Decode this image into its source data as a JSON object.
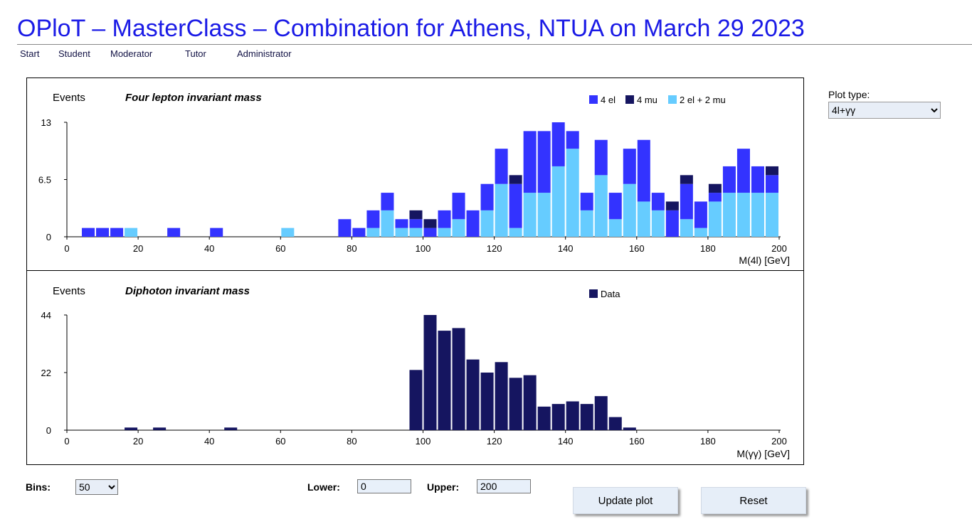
{
  "page": {
    "title": "OPloT – MasterClass – Combination for Athens, NTUA on March 29 2023",
    "nav": [
      "Start",
      "Student",
      "Moderator",
      "Tutor",
      "Administrator"
    ]
  },
  "controls": {
    "plot_type_label": "Plot type:",
    "plot_type_value": "4l+γγ",
    "bins_label": "Bins:",
    "bins_value": "50",
    "lower_label": "Lower:",
    "lower_value": "0",
    "upper_label": "Upper:",
    "upper_value": "200",
    "update_button": "Update plot",
    "reset_button": "Reset"
  },
  "colors": {
    "el4": "#3333ff",
    "mu4": "#151560",
    "mixed": "#66ccff",
    "data": "#151560",
    "title": "#1a1ae6"
  },
  "chart_data": [
    {
      "type": "bar",
      "stacked": true,
      "title": "Four lepton invariant mass",
      "ylabel": "Events",
      "xlabel": "M(4l) [GeV]",
      "xlim": [
        0,
        200
      ],
      "ylim": [
        0,
        13
      ],
      "xticks": [
        0,
        20,
        40,
        60,
        80,
        100,
        120,
        140,
        160,
        180,
        200
      ],
      "yticks": [
        0,
        6.5,
        13
      ],
      "ytick_labels": [
        "0",
        "6.5",
        "13"
      ],
      "legend_position": "top-right",
      "bin_width": 4,
      "x": [
        2,
        6,
        10,
        14,
        18,
        22,
        26,
        30,
        34,
        38,
        42,
        46,
        50,
        54,
        58,
        62,
        66,
        70,
        74,
        78,
        82,
        86,
        90,
        94,
        98,
        102,
        106,
        110,
        114,
        118,
        122,
        126,
        130,
        134,
        138,
        142,
        146,
        150,
        154,
        158,
        162,
        166,
        170,
        174,
        178,
        182,
        186,
        190,
        194,
        198
      ],
      "series": [
        {
          "name": "2 el + 2 mu",
          "color": "#66ccff",
          "values": [
            0,
            0,
            0,
            0,
            1,
            0,
            0,
            0,
            0,
            0,
            0,
            0,
            0,
            0,
            0,
            1,
            0,
            0,
            0,
            0,
            0,
            1,
            3,
            1,
            1,
            0,
            1,
            2,
            0,
            3,
            6,
            1,
            5,
            5,
            8,
            10,
            3,
            7,
            2,
            6,
            4,
            3,
            0,
            2,
            1,
            4,
            5,
            5,
            5,
            5
          ]
        },
        {
          "name": "4 el",
          "color": "#3333ff",
          "values": [
            0,
            1,
            1,
            1,
            0,
            0,
            0,
            1,
            0,
            0,
            1,
            0,
            0,
            0,
            0,
            0,
            0,
            0,
            0,
            2,
            1,
            2,
            2,
            1,
            1,
            1,
            2,
            3,
            3,
            3,
            4,
            5,
            7,
            7,
            5,
            2,
            2,
            4,
            3,
            4,
            7,
            2,
            3,
            4,
            3,
            1,
            3,
            5,
            3,
            2
          ]
        },
        {
          "name": "4 mu",
          "color": "#151560",
          "values": [
            0,
            0,
            0,
            0,
            0,
            0,
            0,
            0,
            0,
            0,
            0,
            0,
            0,
            0,
            0,
            0,
            0,
            0,
            0,
            0,
            0,
            0,
            0,
            0,
            1,
            1,
            0,
            0,
            0,
            0,
            0,
            1,
            0,
            0,
            0,
            0,
            0,
            0,
            0,
            0,
            0,
            0,
            1,
            1,
            0,
            1,
            0,
            0,
            0,
            1
          ]
        }
      ]
    },
    {
      "type": "bar",
      "title": "Diphoton invariant mass",
      "ylabel": "Events",
      "xlabel": "M(γγ) [GeV]",
      "xlim": [
        0,
        200
      ],
      "ylim": [
        0,
        44
      ],
      "xticks": [
        0,
        20,
        40,
        60,
        80,
        100,
        120,
        140,
        160,
        180,
        200
      ],
      "yticks": [
        0,
        22,
        44
      ],
      "ytick_labels": [
        "0",
        "22",
        "44"
      ],
      "legend_position": "top-right",
      "bin_width": 4,
      "x": [
        2,
        6,
        10,
        14,
        18,
        22,
        26,
        30,
        34,
        38,
        42,
        46,
        50,
        54,
        58,
        62,
        66,
        70,
        74,
        78,
        82,
        86,
        90,
        94,
        98,
        102,
        106,
        110,
        114,
        118,
        122,
        126,
        130,
        134,
        138,
        142,
        146,
        150,
        154,
        158,
        162,
        166,
        170,
        174,
        178,
        182,
        186,
        190,
        194,
        198
      ],
      "series": [
        {
          "name": "Data",
          "color": "#151560",
          "values": [
            0,
            0,
            0,
            0,
            1,
            0,
            1,
            0,
            0,
            0,
            0,
            1,
            0,
            0,
            0,
            0,
            0,
            0,
            0,
            0,
            0,
            0,
            0,
            0,
            23,
            44,
            38,
            39,
            27,
            22,
            26,
            20,
            21,
            9,
            10,
            11,
            10,
            13,
            5,
            1,
            0,
            0,
            0,
            0,
            0,
            0,
            0,
            0,
            0,
            0
          ]
        }
      ]
    }
  ]
}
